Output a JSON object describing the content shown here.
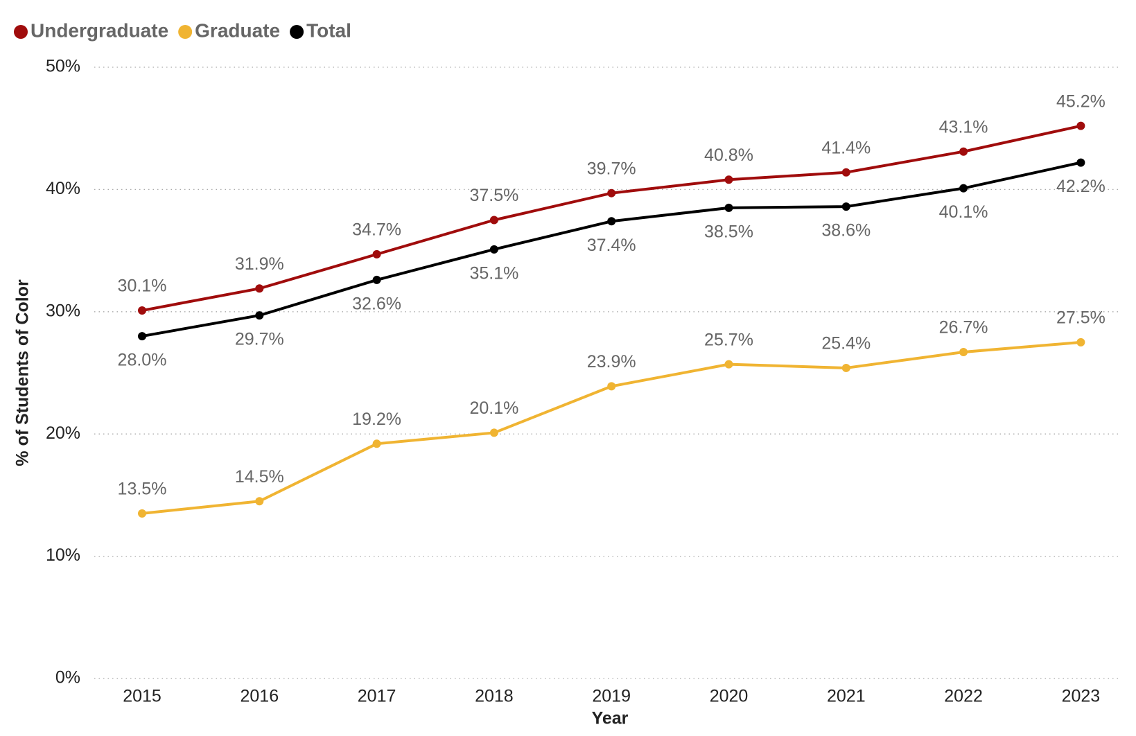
{
  "chart_data": {
    "type": "line",
    "x_label": "Year",
    "y_label": "% of Students of Color",
    "categories": [
      "2015",
      "2016",
      "2017",
      "2018",
      "2019",
      "2020",
      "2021",
      "2022",
      "2023"
    ],
    "series": [
      {
        "name": "Undergraduate",
        "color": "#a00c0c",
        "values": [
          30.1,
          31.9,
          34.7,
          37.5,
          39.7,
          40.8,
          41.4,
          43.1,
          45.2
        ],
        "value_labels": [
          "30.1%",
          "31.9%",
          "34.7%",
          "37.5%",
          "39.7%",
          "40.8%",
          "41.4%",
          "43.1%",
          "45.2%"
        ]
      },
      {
        "name": "Graduate",
        "color": "#f0b432",
        "values": [
          13.5,
          14.5,
          19.2,
          20.1,
          23.9,
          25.7,
          25.4,
          26.7,
          27.5
        ],
        "value_labels": [
          "13.5%",
          "14.5%",
          "19.2%",
          "20.1%",
          "23.9%",
          "25.7%",
          "25.4%",
          "26.7%",
          "27.5%"
        ]
      },
      {
        "name": "Total",
        "color": "#000000",
        "values": [
          28.0,
          29.7,
          32.6,
          35.1,
          37.4,
          38.5,
          38.6,
          40.1,
          42.2
        ],
        "value_labels": [
          "28.0%",
          "29.7%",
          "32.6%",
          "35.1%",
          "37.4%",
          "38.5%",
          "38.6%",
          "40.1%",
          "42.2%"
        ]
      }
    ],
    "ylim": [
      0,
      50
    ],
    "yticks": [
      {
        "value": 0,
        "label": "0%"
      },
      {
        "value": 10,
        "label": "10%"
      },
      {
        "value": 20,
        "label": "20%"
      },
      {
        "value": 30,
        "label": "30%"
      },
      {
        "value": 40,
        "label": "40%"
      },
      {
        "value": 50,
        "label": "50%"
      }
    ],
    "grid": true,
    "legend": "top-left"
  }
}
